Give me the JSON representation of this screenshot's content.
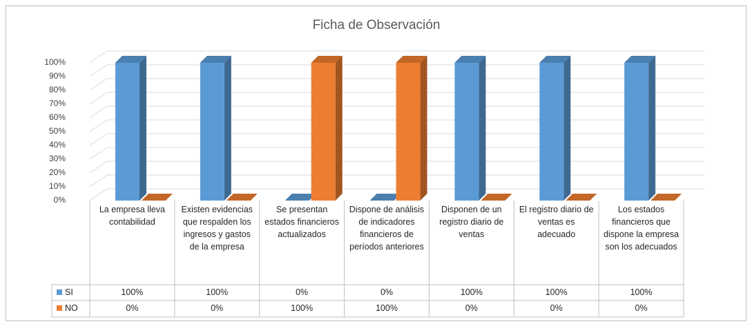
{
  "chart_data": {
    "type": "bar3d",
    "title": "Ficha de Observación",
    "categories": [
      "La empresa lleva contabilidad",
      "Existen evidencias que respalden los ingresos y gastos de la empresa",
      "Se presentan estados financieros actualizados",
      "Dispone de análisis de indicadores financieros de períodos anteriores",
      "Disponen de un registro diario de ventas",
      "El registro diario de ventas es adecuado",
      "Los estados financieros que dispone la empresa son los adecuados"
    ],
    "series": [
      {
        "name": "SI",
        "color": "#5b9bd5",
        "values": [
          100,
          100,
          0,
          0,
          100,
          100,
          100
        ],
        "value_labels": [
          "100%",
          "100%",
          "0%",
          "0%",
          "100%",
          "100%",
          "100%"
        ]
      },
      {
        "name": "NO",
        "color": "#ed7d31",
        "values": [
          0,
          0,
          100,
          100,
          0,
          0,
          0
        ],
        "value_labels": [
          "0%",
          "0%",
          "100%",
          "100%",
          "0%",
          "0%",
          "0%"
        ]
      }
    ],
    "ylim": [
      0,
      100
    ],
    "yticks": [
      {
        "value": 0,
        "label": "0%"
      },
      {
        "value": 10,
        "label": "10%"
      },
      {
        "value": 20,
        "label": "20%"
      },
      {
        "value": 30,
        "label": "30%"
      },
      {
        "value": 40,
        "label": "40%"
      },
      {
        "value": 50,
        "label": "50%"
      },
      {
        "value": 60,
        "label": "60%"
      },
      {
        "value": 70,
        "label": "70%"
      },
      {
        "value": 80,
        "label": "80%"
      },
      {
        "value": 90,
        "label": "90%"
      },
      {
        "value": 100,
        "label": "100%"
      }
    ],
    "grid": true
  }
}
